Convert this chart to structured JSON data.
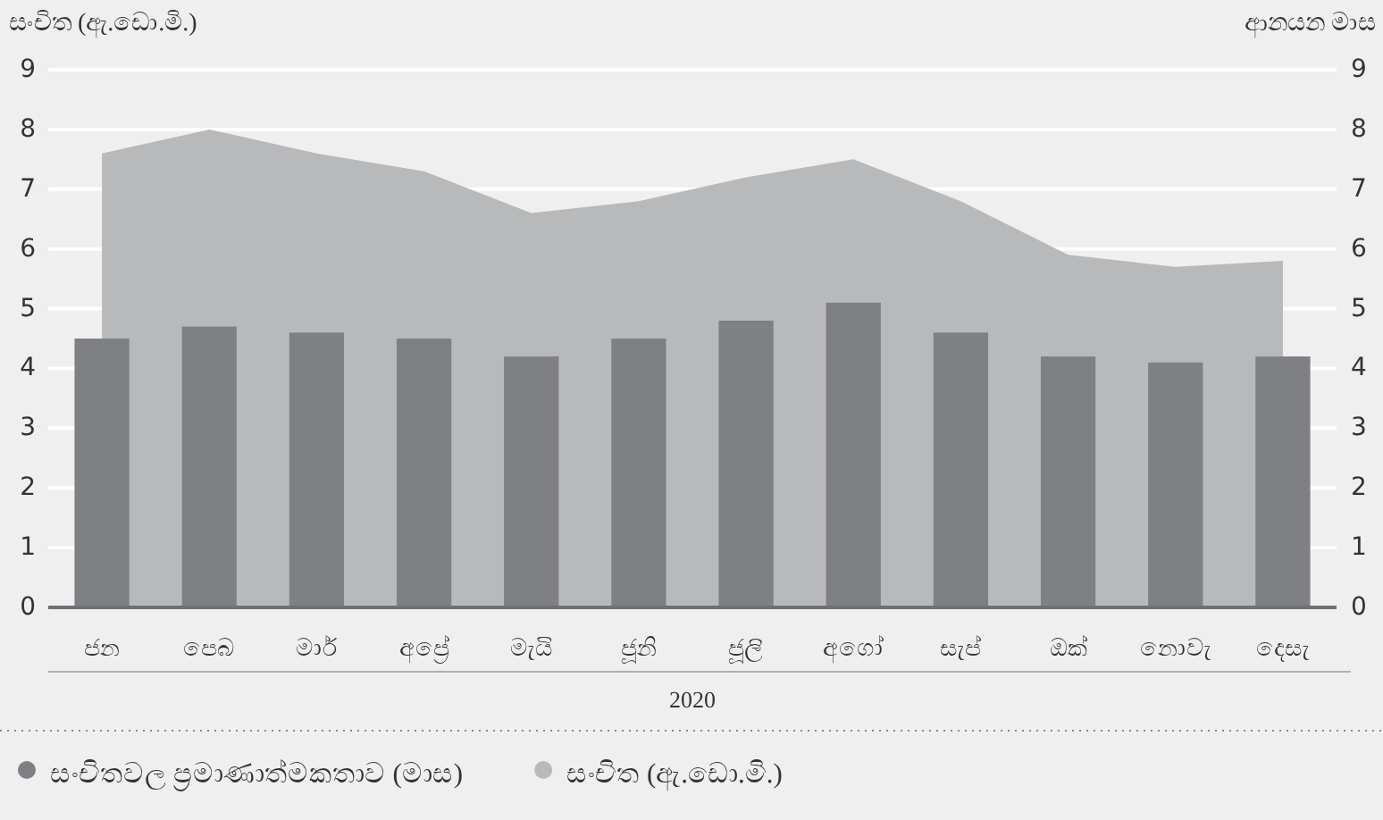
{
  "chart_data": {
    "type": "bar",
    "xlabel": "2020",
    "ylabel": "සංචිත (ඇ.ඩො.මි.)",
    "y2label": "ආනයන මාස",
    "categories": [
      "ජන",
      "පෙබ",
      "මාර්",
      "අප්‍රේ",
      "මැයි",
      "ජූනි",
      "ජූලි",
      "අගෝ",
      "සැප්",
      "ඔක්",
      "නොවැ",
      "දෙසැ"
    ],
    "series": [
      {
        "name": "සංචිතවල ප්‍රමාණාත්මකතාව (මාස)",
        "axis": "y2",
        "color": "#7f8084",
        "values": [
          4.5,
          4.7,
          4.6,
          4.5,
          4.2,
          4.5,
          4.8,
          5.1,
          4.6,
          4.2,
          4.1,
          4.2
        ]
      },
      {
        "name": "සංචිත (ඇ.ඩො.මි.)",
        "type": "area",
        "color": "#b8b9bb",
        "values": [
          7.6,
          8.0,
          7.6,
          7.3,
          6.6,
          6.8,
          7.2,
          7.5,
          6.8,
          5.9,
          5.7,
          5.8
        ]
      }
    ],
    "ylim": [
      0,
      9
    ],
    "yticks": [
      0,
      1,
      2,
      3,
      4,
      5,
      6,
      7,
      8,
      9
    ],
    "y2lim": [
      0,
      9
    ],
    "y2ticks": [
      0,
      1,
      2,
      3,
      4,
      5,
      6,
      7,
      8,
      9
    ],
    "grid": "y",
    "legend": "bottom"
  }
}
